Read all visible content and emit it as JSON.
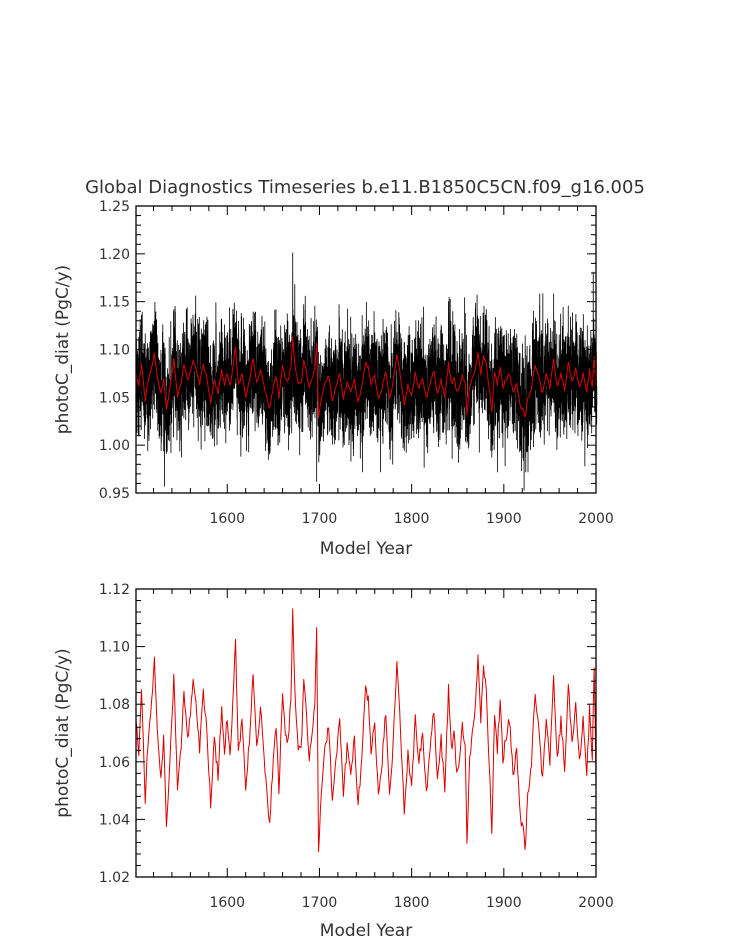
{
  "chart_data": [
    {
      "type": "line",
      "title": "Global Diagnostics Timeseries b.e11.B1850C5CN.f09_g16.005",
      "xlabel": "Model Year",
      "ylabel": "photoC_diat (PgC/y)",
      "xlim": [
        1501,
        2000
      ],
      "ylim": [
        0.95,
        1.25
      ],
      "x_ticks": [
        "1600",
        "1700",
        "1800",
        "1900",
        "2000"
      ],
      "y_ticks": [
        "0.95",
        "1.00",
        "1.05",
        "1.10",
        "1.15",
        "1.20",
        "1.25"
      ],
      "grid": false,
      "legend": "none",
      "series": [
        {
          "description": "monthly values",
          "color": "#000000",
          "x_start": 1501,
          "x_end": 2000,
          "points_per_year": 12,
          "mean": 1.068,
          "typical_range": [
            1.0,
            1.15
          ],
          "extremes": [
            {
              "x": 1532,
              "y": 0.957
            },
            {
              "x": 1671,
              "y": 1.201
            },
            {
              "x": 1697,
              "y": 0.962
            },
            {
              "x": 1922,
              "y": 0.953
            },
            {
              "x": 1997,
              "y": 1.181
            }
          ]
        },
        {
          "description": "annual means",
          "color": "#dd0000",
          "x_start": 1501,
          "x_end": 2000,
          "points_per_year": 1
        }
      ]
    },
    {
      "type": "line",
      "title": "",
      "xlabel": "Model Year",
      "ylabel": "photoC_diat (PgC/y)",
      "xlim": [
        1501,
        2000
      ],
      "ylim": [
        1.02,
        1.12
      ],
      "x_ticks": [
        "1600",
        "1700",
        "1800",
        "1900",
        "2000"
      ],
      "y_ticks": [
        "1.02",
        "1.04",
        "1.06",
        "1.08",
        "1.10",
        "1.12"
      ],
      "grid": false,
      "legend": "none",
      "series": [
        {
          "description": "annual means",
          "color": "#dd0000",
          "x_start": 1501,
          "x_end": 2000,
          "points_per_year": 1,
          "anchors": [
            [
              1501,
              1.074
            ],
            [
              1504,
              1.062
            ],
            [
              1507,
              1.086
            ],
            [
              1511,
              1.047
            ],
            [
              1514,
              1.067
            ],
            [
              1518,
              1.08
            ],
            [
              1521,
              1.097
            ],
            [
              1524,
              1.071
            ],
            [
              1528,
              1.053
            ],
            [
              1531,
              1.069
            ],
            [
              1534,
              1.039
            ],
            [
              1538,
              1.06
            ],
            [
              1542,
              1.09
            ],
            [
              1546,
              1.05
            ],
            [
              1550,
              1.066
            ],
            [
              1553,
              1.083
            ],
            [
              1557,
              1.067
            ],
            [
              1560,
              1.078
            ],
            [
              1563,
              1.089
            ],
            [
              1566,
              1.08
            ],
            [
              1570,
              1.065
            ],
            [
              1574,
              1.085
            ],
            [
              1578,
              1.07
            ],
            [
              1582,
              1.045
            ],
            [
              1586,
              1.068
            ],
            [
              1590,
              1.055
            ],
            [
              1594,
              1.078
            ],
            [
              1597,
              1.063
            ],
            [
              1600,
              1.076
            ],
            [
              1603,
              1.062
            ],
            [
              1606,
              1.08
            ],
            [
              1609,
              1.103
            ],
            [
              1612,
              1.063
            ],
            [
              1616,
              1.074
            ],
            [
              1620,
              1.05
            ],
            [
              1624,
              1.068
            ],
            [
              1628,
              1.09
            ],
            [
              1632,
              1.065
            ],
            [
              1636,
              1.079
            ],
            [
              1640,
              1.06
            ],
            [
              1643,
              1.049
            ],
            [
              1646,
              1.039
            ],
            [
              1650,
              1.06
            ],
            [
              1653,
              1.073
            ],
            [
              1656,
              1.05
            ],
            [
              1660,
              1.083
            ],
            [
              1663,
              1.07
            ],
            [
              1666,
              1.067
            ],
            [
              1669,
              1.082
            ],
            [
              1671,
              1.113
            ],
            [
              1674,
              1.078
            ],
            [
              1677,
              1.066
            ],
            [
              1680,
              1.063
            ],
            [
              1683,
              1.087
            ],
            [
              1686,
              1.076
            ],
            [
              1689,
              1.06
            ],
            [
              1692,
              1.07
            ],
            [
              1695,
              1.079
            ],
            [
              1697,
              1.108
            ],
            [
              1699,
              1.028
            ],
            [
              1702,
              1.05
            ],
            [
              1706,
              1.065
            ],
            [
              1710,
              1.072
            ],
            [
              1714,
              1.047
            ],
            [
              1718,
              1.06
            ],
            [
              1722,
              1.075
            ],
            [
              1726,
              1.05
            ],
            [
              1730,
              1.065
            ],
            [
              1734,
              1.055
            ],
            [
              1738,
              1.068
            ],
            [
              1742,
              1.045
            ],
            [
              1746,
              1.062
            ],
            [
              1750,
              1.087
            ],
            [
              1753,
              1.081
            ],
            [
              1756,
              1.064
            ],
            [
              1760,
              1.073
            ],
            [
              1764,
              1.047
            ],
            [
              1768,
              1.06
            ],
            [
              1772,
              1.078
            ],
            [
              1776,
              1.05
            ],
            [
              1780,
              1.066
            ],
            [
              1784,
              1.096
            ],
            [
              1788,
              1.071
            ],
            [
              1792,
              1.042
            ],
            [
              1796,
              1.063
            ],
            [
              1800,
              1.052
            ],
            [
              1804,
              1.075
            ],
            [
              1808,
              1.06
            ],
            [
              1812,
              1.07
            ],
            [
              1816,
              1.048
            ],
            [
              1820,
              1.065
            ],
            [
              1824,
              1.078
            ],
            [
              1828,
              1.055
            ],
            [
              1832,
              1.068
            ],
            [
              1836,
              1.05
            ],
            [
              1840,
              1.086
            ],
            [
              1843,
              1.064
            ],
            [
              1846,
              1.071
            ],
            [
              1849,
              1.056
            ],
            [
              1852,
              1.06
            ],
            [
              1855,
              1.074
            ],
            [
              1858,
              1.065
            ],
            [
              1860,
              1.033
            ],
            [
              1863,
              1.06
            ],
            [
              1866,
              1.07
            ],
            [
              1869,
              1.078
            ],
            [
              1872,
              1.096
            ],
            [
              1875,
              1.075
            ],
            [
              1878,
              1.093
            ],
            [
              1881,
              1.085
            ],
            [
              1884,
              1.06
            ],
            [
              1887,
              1.036
            ],
            [
              1890,
              1.078
            ],
            [
              1893,
              1.064
            ],
            [
              1896,
              1.082
            ],
            [
              1899,
              1.061
            ],
            [
              1902,
              1.068
            ],
            [
              1906,
              1.075
            ],
            [
              1910,
              1.056
            ],
            [
              1914,
              1.063
            ],
            [
              1918,
              1.04
            ],
            [
              1921,
              1.038
            ],
            [
              1923,
              1.028
            ],
            [
              1926,
              1.048
            ],
            [
              1930,
              1.06
            ],
            [
              1934,
              1.085
            ],
            [
              1938,
              1.07
            ],
            [
              1942,
              1.054
            ],
            [
              1946,
              1.076
            ],
            [
              1950,
              1.06
            ],
            [
              1954,
              1.088
            ],
            [
              1958,
              1.062
            ],
            [
              1962,
              1.074
            ],
            [
              1966,
              1.058
            ],
            [
              1970,
              1.087
            ],
            [
              1974,
              1.066
            ],
            [
              1978,
              1.08
            ],
            [
              1982,
              1.06
            ],
            [
              1986,
              1.074
            ],
            [
              1990,
              1.056
            ],
            [
              1993,
              1.078
            ],
            [
              1996,
              1.062
            ],
            [
              1998,
              1.094
            ],
            [
              2000,
              1.054
            ]
          ]
        }
      ]
    }
  ]
}
